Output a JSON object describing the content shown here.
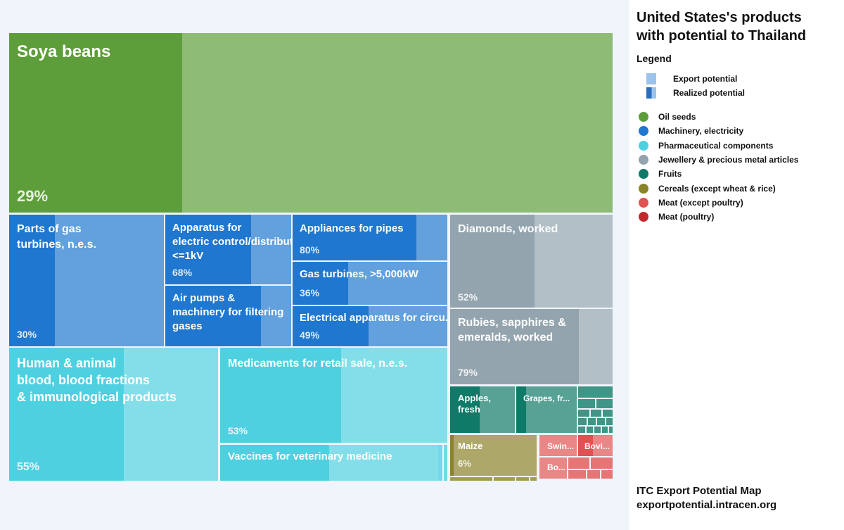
{
  "side": {
    "title_line1": "United States's products",
    "title_line2": "with potential to Thailand",
    "legend_heading": "Legend",
    "export_potential": "Export potential",
    "realized_potential": "Realized potential",
    "footer_line1": "ITC Export Potential Map",
    "footer_line2": "exportpotential.intracen.org"
  },
  "categories": [
    {
      "name": "Oil seeds",
      "color": "#5e9e3a"
    },
    {
      "name": "Machinery, electricity",
      "color": "#1f77d0"
    },
    {
      "name": "Pharmaceutical components",
      "color": "#4fd0e0"
    },
    {
      "name": "Jewellery & precious metal articles",
      "color": "#93a4ae"
    },
    {
      "name": "Fruits",
      "color": "#0f7a68"
    },
    {
      "name": "Cereals (except wheat & rice)",
      "color": "#8a8328"
    },
    {
      "name": "Meat (except poultry)",
      "color": "#e05252"
    },
    {
      "name": "Meat (poultry)",
      "color": "#c1272d"
    }
  ],
  "chart_data": {
    "type": "treemap",
    "title": "United States's products with potential to Thailand",
    "value_meaning": "percent of export potential realized",
    "items": [
      {
        "label": "Soya beans",
        "category": "Oil seeds",
        "realized_pct": 29
      },
      {
        "label": "Parts of gas turbines, n.e.s.",
        "category": "Machinery, electricity",
        "realized_pct": 30
      },
      {
        "label": "Apparatus for electric control/distribution, <=1kV",
        "category": "Machinery, electricity",
        "realized_pct": 68
      },
      {
        "label": "Air pumps & machinery for filtering gases",
        "category": "Machinery, electricity",
        "realized_pct": null
      },
      {
        "label": "Appliances for pipes",
        "category": "Machinery, electricity",
        "realized_pct": 80
      },
      {
        "label": "Gas turbines, >5,000kW",
        "category": "Machinery, electricity",
        "realized_pct": 36
      },
      {
        "label": "Electrical apparatus for circu...",
        "category": "Machinery, electricity",
        "realized_pct": 49
      },
      {
        "label": "Human & animal blood, blood fractions & immunological products",
        "category": "Pharmaceutical components",
        "realized_pct": 55
      },
      {
        "label": "Medicaments for retail sale, n.e.s.",
        "category": "Pharmaceutical components",
        "realized_pct": 53
      },
      {
        "label": "Vaccines for veterinary medicine",
        "category": "Pharmaceutical components",
        "realized_pct": null
      },
      {
        "label": "Diamonds, worked",
        "category": "Jewellery & precious metal articles",
        "realized_pct": 52
      },
      {
        "label": "Rubies, sapphires & emeralds, worked",
        "category": "Jewellery & precious metal articles",
        "realized_pct": 79
      },
      {
        "label": "Apples, fresh",
        "category": "Fruits",
        "realized_pct": null
      },
      {
        "label": "Grapes, fr...",
        "category": "Fruits",
        "realized_pct": null
      },
      {
        "label": "Maize",
        "category": "Cereals (except wheat & rice)",
        "realized_pct": 6
      },
      {
        "label": "Swin...",
        "category": "Meat (except poultry)",
        "realized_pct": null
      },
      {
        "label": "Bovi...",
        "category": "Meat (except poultry)",
        "realized_pct": null
      },
      {
        "label": "Bo...",
        "category": "Meat (except poultry)",
        "realized_pct": null
      }
    ]
  }
}
